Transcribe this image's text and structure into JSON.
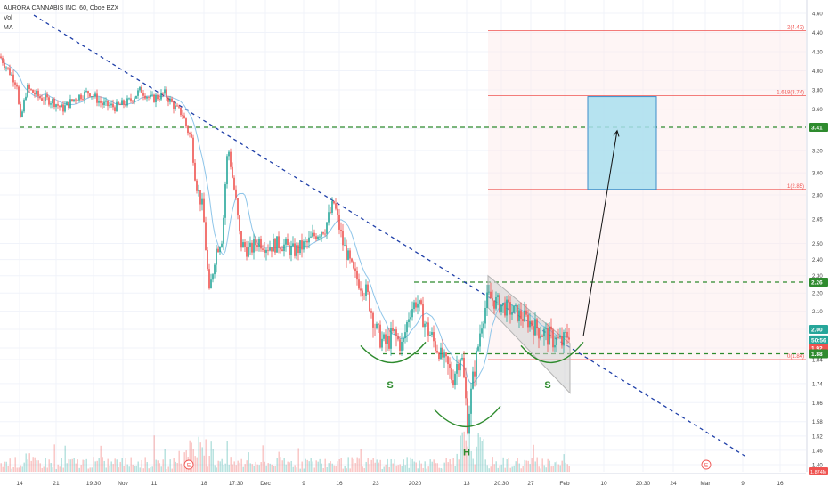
{
  "legend": {
    "title": "AURORA CANNABIS INC, 60, Cboe BZX",
    "indicators": [
      "Vol",
      "MA"
    ]
  },
  "colors": {
    "up": "#26a69a",
    "down": "#ef5350",
    "ma": "#8ec5e9",
    "trend": "#1f3fa8",
    "level": "#2e8b2e",
    "fib": "#ef5350",
    "target_fill": "#a9dfee",
    "target_stroke": "#3c8dc9",
    "channel": "#b4b4b4",
    "pattern": "#2e8b2e"
  },
  "chart_data": {
    "type": "candlestick",
    "title": "AURORA CANNABIS INC, 60, Cboe BZX",
    "ylim": [
      1.36,
      4.66
    ],
    "y_ticks": [
      4.6,
      4.4,
      4.2,
      4.0,
      3.8,
      3.6,
      3.4,
      3.2,
      3.0,
      2.8,
      2.65,
      2.5,
      2.4,
      2.3,
      2.2,
      2.1,
      2.0,
      1.92,
      1.84,
      1.74,
      1.66,
      1.58,
      1.52,
      1.46,
      1.4
    ],
    "y_tick_labels": [
      "4.60",
      "4.40",
      "4.20",
      "4.00",
      "3.80",
      "3.60",
      "3.40",
      "3.20",
      "3.00",
      "2.80",
      "2.65",
      "2.50",
      "2.40",
      "2.30",
      "2.20",
      "2.10",
      "2.00",
      "1.92",
      "1.84",
      "1.74",
      "1.66",
      "1.58",
      "1.52",
      "1.46",
      "1.40"
    ],
    "x_tick_labels": [
      "14",
      "21",
      "19:30",
      "Nov",
      "11",
      "18",
      "17:30",
      "Dec",
      "9",
      "16",
      "23",
      "2020",
      "13",
      "20:30",
      "27",
      "Feb",
      "10",
      "20:30",
      "24",
      "Mar",
      "9",
      "16"
    ],
    "price_tags": [
      {
        "label": "3.41",
        "value": 3.41,
        "color": "#2e8b2e"
      },
      {
        "label": "2.26",
        "value": 2.26,
        "color": "#2e8b2e"
      },
      {
        "label": "2.00",
        "value": 2.0,
        "color": "#26a69a"
      },
      {
        "label": "50:56",
        "value": 1.955,
        "color": "#26a69a"
      },
      {
        "label": "1.92",
        "value": 1.92,
        "color": "#ef5350"
      },
      {
        "label": "1.88",
        "value": 1.88,
        "color": "#2e8b2e"
      }
    ],
    "price_anchors": [
      [
        0,
        4.15
      ],
      [
        20,
        3.85
      ],
      [
        22,
        3.42
      ],
      [
        30,
        3.82
      ],
      [
        45,
        3.72
      ],
      [
        60,
        3.68
      ],
      [
        70,
        3.6
      ],
      [
        85,
        3.72
      ],
      [
        100,
        3.78
      ],
      [
        115,
        3.65
      ],
      [
        130,
        3.62
      ],
      [
        145,
        3.68
      ],
      [
        158,
        3.8
      ],
      [
        170,
        3.7
      ],
      [
        185,
        3.76
      ],
      [
        198,
        3.6
      ],
      [
        205,
        3.55
      ],
      [
        210,
        3.4
      ],
      [
        215,
        3.3
      ],
      [
        220,
        2.9
      ],
      [
        228,
        2.7
      ],
      [
        235,
        2.18
      ],
      [
        242,
        2.45
      ],
      [
        250,
        2.55
      ],
      [
        256,
        3.25
      ],
      [
        262,
        2.9
      ],
      [
        270,
        2.5
      ],
      [
        280,
        2.45
      ],
      [
        290,
        2.52
      ],
      [
        300,
        2.48
      ],
      [
        315,
        2.5
      ],
      [
        330,
        2.45
      ],
      [
        345,
        2.5
      ],
      [
        355,
        2.56
      ],
      [
        365,
        2.6
      ],
      [
        375,
        2.75
      ],
      [
        385,
        2.5
      ],
      [
        398,
        2.3
      ],
      [
        412,
        2.2
      ],
      [
        422,
        2.0
      ],
      [
        432,
        1.93
      ],
      [
        442,
        1.98
      ],
      [
        452,
        1.92
      ],
      [
        460,
        2.1
      ],
      [
        468,
        2.16
      ],
      [
        478,
        2.02
      ],
      [
        490,
        1.92
      ],
      [
        500,
        1.83
      ],
      [
        508,
        1.76
      ],
      [
        518,
        1.88
      ],
      [
        525,
        1.58
      ],
      [
        532,
        1.78
      ],
      [
        540,
        2.02
      ],
      [
        548,
        2.18
      ],
      [
        560,
        2.14
      ],
      [
        575,
        2.1
      ],
      [
        590,
        2.06
      ],
      [
        605,
        2.0
      ],
      [
        620,
        1.96
      ],
      [
        632,
        1.94
      ],
      [
        640,
        2.0
      ]
    ],
    "ma_note": "moving average overlay",
    "volume_note": "volume histogram",
    "trend_line": [
      [
        0,
        4.8
      ],
      [
        930,
        1.22
      ]
    ],
    "horizontal_levels": [
      {
        "value": 3.41,
        "from_x": 22,
        "to_x": 905
      },
      {
        "value": 2.26,
        "from_x": 465,
        "to_x": 905
      },
      {
        "value": 1.88,
        "from_x": 430,
        "to_x": 905
      }
    ],
    "fibonacci": [
      {
        "label": "2(4.42)",
        "value": 4.42
      },
      {
        "label": "1.618(3.74)",
        "value": 3.74
      },
      {
        "label": "1(2.85)",
        "value": 2.85
      },
      {
        "label": "0(1.84)",
        "value": 1.84
      }
    ],
    "fib_x": [
      548,
      905
    ],
    "target_box": {
      "x0": 660,
      "x1": 737,
      "top": 3.73,
      "bottom": 2.85
    },
    "arrow": {
      "from": [
        655,
        1.97
      ],
      "to": [
        693,
        3.38
      ]
    },
    "channel": [
      [
        548,
        2.3
      ],
      [
        640,
        1.94
      ],
      [
        640,
        1.7
      ],
      [
        548,
        2.12
      ]
    ],
    "pattern_labels": [
      {
        "label": "S",
        "x": 438,
        "value": 1.72
      },
      {
        "label": "H",
        "x": 524,
        "value": 1.44
      },
      {
        "label": "S",
        "x": 615,
        "value": 1.72
      }
    ],
    "pattern_arcs": [
      {
        "x0": 405,
        "x1": 478,
        "value": 1.93
      },
      {
        "x0": 488,
        "x1": 562,
        "value": 1.63
      },
      {
        "x0": 585,
        "x1": 655,
        "value": 1.93
      }
    ],
    "events": [
      {
        "label": "E",
        "x": 212
      },
      {
        "label": "E",
        "x": 793
      }
    ],
    "bottom_tag": "1.874M"
  }
}
